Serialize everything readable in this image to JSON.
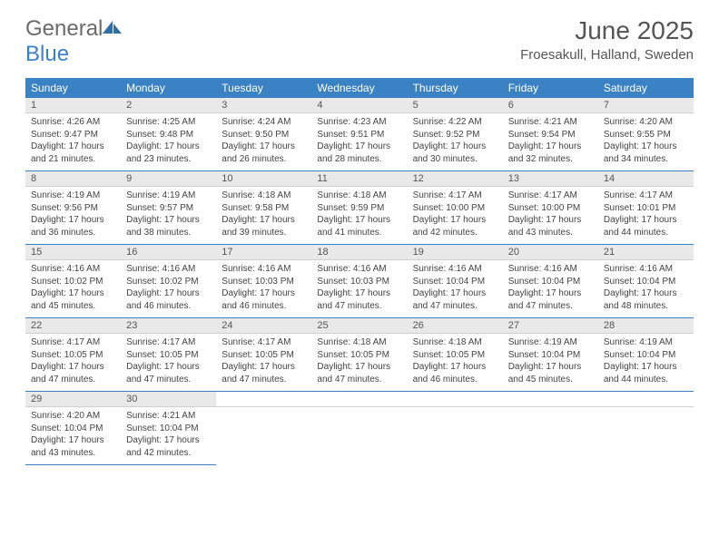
{
  "brand": {
    "general": "General",
    "blue": "Blue"
  },
  "title": "June 2025",
  "location": "Froesakull, Halland, Sweden",
  "colors": {
    "header_bg": "#3b82c4",
    "header_text": "#ffffff",
    "daynum_bg": "#e9e9e9",
    "border": "#3b82c4"
  },
  "dayNames": [
    "Sunday",
    "Monday",
    "Tuesday",
    "Wednesday",
    "Thursday",
    "Friday",
    "Saturday"
  ],
  "weeks": [
    [
      {
        "n": "1",
        "sr": "Sunrise: 4:26 AM",
        "ss": "Sunset: 9:47 PM",
        "dl": "Daylight: 17 hours and 21 minutes."
      },
      {
        "n": "2",
        "sr": "Sunrise: 4:25 AM",
        "ss": "Sunset: 9:48 PM",
        "dl": "Daylight: 17 hours and 23 minutes."
      },
      {
        "n": "3",
        "sr": "Sunrise: 4:24 AM",
        "ss": "Sunset: 9:50 PM",
        "dl": "Daylight: 17 hours and 26 minutes."
      },
      {
        "n": "4",
        "sr": "Sunrise: 4:23 AM",
        "ss": "Sunset: 9:51 PM",
        "dl": "Daylight: 17 hours and 28 minutes."
      },
      {
        "n": "5",
        "sr": "Sunrise: 4:22 AM",
        "ss": "Sunset: 9:52 PM",
        "dl": "Daylight: 17 hours and 30 minutes."
      },
      {
        "n": "6",
        "sr": "Sunrise: 4:21 AM",
        "ss": "Sunset: 9:54 PM",
        "dl": "Daylight: 17 hours and 32 minutes."
      },
      {
        "n": "7",
        "sr": "Sunrise: 4:20 AM",
        "ss": "Sunset: 9:55 PM",
        "dl": "Daylight: 17 hours and 34 minutes."
      }
    ],
    [
      {
        "n": "8",
        "sr": "Sunrise: 4:19 AM",
        "ss": "Sunset: 9:56 PM",
        "dl": "Daylight: 17 hours and 36 minutes."
      },
      {
        "n": "9",
        "sr": "Sunrise: 4:19 AM",
        "ss": "Sunset: 9:57 PM",
        "dl": "Daylight: 17 hours and 38 minutes."
      },
      {
        "n": "10",
        "sr": "Sunrise: 4:18 AM",
        "ss": "Sunset: 9:58 PM",
        "dl": "Daylight: 17 hours and 39 minutes."
      },
      {
        "n": "11",
        "sr": "Sunrise: 4:18 AM",
        "ss": "Sunset: 9:59 PM",
        "dl": "Daylight: 17 hours and 41 minutes."
      },
      {
        "n": "12",
        "sr": "Sunrise: 4:17 AM",
        "ss": "Sunset: 10:00 PM",
        "dl": "Daylight: 17 hours and 42 minutes."
      },
      {
        "n": "13",
        "sr": "Sunrise: 4:17 AM",
        "ss": "Sunset: 10:00 PM",
        "dl": "Daylight: 17 hours and 43 minutes."
      },
      {
        "n": "14",
        "sr": "Sunrise: 4:17 AM",
        "ss": "Sunset: 10:01 PM",
        "dl": "Daylight: 17 hours and 44 minutes."
      }
    ],
    [
      {
        "n": "15",
        "sr": "Sunrise: 4:16 AM",
        "ss": "Sunset: 10:02 PM",
        "dl": "Daylight: 17 hours and 45 minutes."
      },
      {
        "n": "16",
        "sr": "Sunrise: 4:16 AM",
        "ss": "Sunset: 10:02 PM",
        "dl": "Daylight: 17 hours and 46 minutes."
      },
      {
        "n": "17",
        "sr": "Sunrise: 4:16 AM",
        "ss": "Sunset: 10:03 PM",
        "dl": "Daylight: 17 hours and 46 minutes."
      },
      {
        "n": "18",
        "sr": "Sunrise: 4:16 AM",
        "ss": "Sunset: 10:03 PM",
        "dl": "Daylight: 17 hours and 47 minutes."
      },
      {
        "n": "19",
        "sr": "Sunrise: 4:16 AM",
        "ss": "Sunset: 10:04 PM",
        "dl": "Daylight: 17 hours and 47 minutes."
      },
      {
        "n": "20",
        "sr": "Sunrise: 4:16 AM",
        "ss": "Sunset: 10:04 PM",
        "dl": "Daylight: 17 hours and 47 minutes."
      },
      {
        "n": "21",
        "sr": "Sunrise: 4:16 AM",
        "ss": "Sunset: 10:04 PM",
        "dl": "Daylight: 17 hours and 48 minutes."
      }
    ],
    [
      {
        "n": "22",
        "sr": "Sunrise: 4:17 AM",
        "ss": "Sunset: 10:05 PM",
        "dl": "Daylight: 17 hours and 47 minutes."
      },
      {
        "n": "23",
        "sr": "Sunrise: 4:17 AM",
        "ss": "Sunset: 10:05 PM",
        "dl": "Daylight: 17 hours and 47 minutes."
      },
      {
        "n": "24",
        "sr": "Sunrise: 4:17 AM",
        "ss": "Sunset: 10:05 PM",
        "dl": "Daylight: 17 hours and 47 minutes."
      },
      {
        "n": "25",
        "sr": "Sunrise: 4:18 AM",
        "ss": "Sunset: 10:05 PM",
        "dl": "Daylight: 17 hours and 47 minutes."
      },
      {
        "n": "26",
        "sr": "Sunrise: 4:18 AM",
        "ss": "Sunset: 10:05 PM",
        "dl": "Daylight: 17 hours and 46 minutes."
      },
      {
        "n": "27",
        "sr": "Sunrise: 4:19 AM",
        "ss": "Sunset: 10:04 PM",
        "dl": "Daylight: 17 hours and 45 minutes."
      },
      {
        "n": "28",
        "sr": "Sunrise: 4:19 AM",
        "ss": "Sunset: 10:04 PM",
        "dl": "Daylight: 17 hours and 44 minutes."
      }
    ],
    [
      {
        "n": "29",
        "sr": "Sunrise: 4:20 AM",
        "ss": "Sunset: 10:04 PM",
        "dl": "Daylight: 17 hours and 43 minutes."
      },
      {
        "n": "30",
        "sr": "Sunrise: 4:21 AM",
        "ss": "Sunset: 10:04 PM",
        "dl": "Daylight: 17 hours and 42 minutes."
      },
      null,
      null,
      null,
      null,
      null
    ]
  ]
}
